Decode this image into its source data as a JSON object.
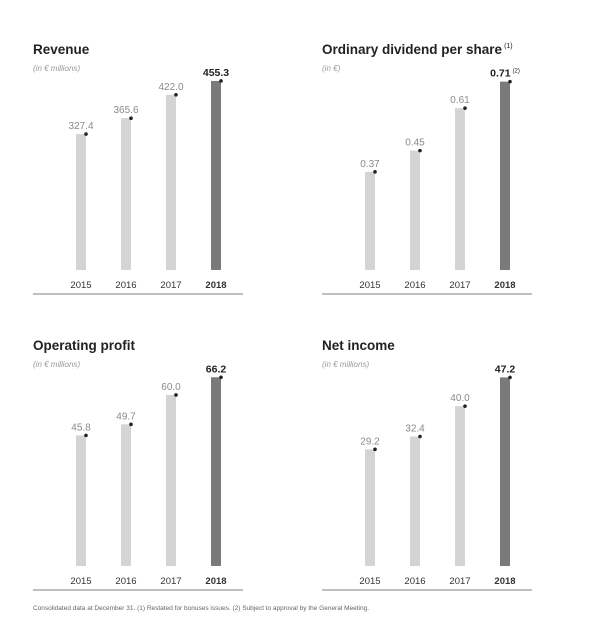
{
  "chart_data": [
    {
      "type": "bar",
      "title": "Revenue",
      "title_note": "",
      "subtitle": "(in € millions)",
      "categories": [
        "2015",
        "2016",
        "2017",
        "2018"
      ],
      "values": [
        327.4,
        365.6,
        422.0,
        455.3
      ],
      "value_labels": [
        "327.4",
        "365.6",
        "422.0",
        "455.3"
      ],
      "value_label_notes": [
        "",
        "",
        "",
        ""
      ],
      "highlight_index": 3,
      "ylim": [
        0,
        460
      ]
    },
    {
      "type": "bar",
      "title": "Ordinary dividend per share",
      "title_note": "(1)",
      "subtitle": "(in €)",
      "categories": [
        "2015",
        "2016",
        "2017",
        "2018"
      ],
      "values": [
        0.37,
        0.45,
        0.61,
        0.71
      ],
      "value_labels": [
        "0.37",
        "0.45",
        "0.61",
        "0.71"
      ],
      "value_label_notes": [
        "",
        "",
        "",
        "(2)"
      ],
      "highlight_index": 3,
      "ylim": [
        0,
        0.72
      ]
    },
    {
      "type": "bar",
      "title": "Operating profit",
      "title_note": "",
      "subtitle": "(in € millions)",
      "categories": [
        "2015",
        "2016",
        "2017",
        "2018"
      ],
      "values": [
        45.8,
        49.7,
        60.0,
        66.2
      ],
      "value_labels": [
        "45.8",
        "49.7",
        "60.0",
        "66.2"
      ],
      "value_label_notes": [
        "",
        "",
        "",
        ""
      ],
      "highlight_index": 3,
      "ylim": [
        0,
        67
      ]
    },
    {
      "type": "bar",
      "title": "Net income",
      "title_note": "",
      "subtitle": "(in € millions)",
      "categories": [
        "2015",
        "2016",
        "2017",
        "2018"
      ],
      "values": [
        29.2,
        32.4,
        40.0,
        47.2
      ],
      "value_labels": [
        "29.2",
        "32.4",
        "40.0",
        "47.2"
      ],
      "value_label_notes": [
        "",
        "",
        "",
        ""
      ],
      "highlight_index": 3,
      "ylim": [
        0,
        47.8
      ]
    }
  ],
  "colors": {
    "bar": "#d4d4d4",
    "bar_highlight": "#7a7a7a",
    "dot": "#222222",
    "axis": "#555555"
  },
  "footnote": "Consolidated data at December 31. (1) Restated for bonuses issues. (2) Subject to approval by the General Meeting."
}
